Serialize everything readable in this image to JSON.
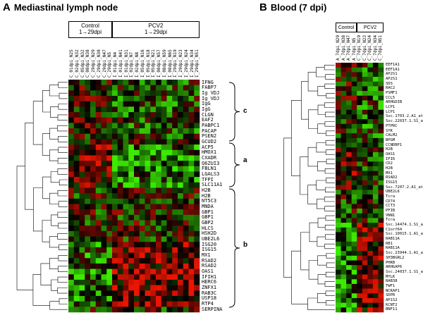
{
  "panelA": {
    "letter": "A",
    "title": "Mediastinal lymph node",
    "groups": [
      {
        "line1": "Control",
        "line2": "1→29dpi"
      },
      {
        "line1": "PCV2",
        "line2": "1→29dpi"
      }
    ],
    "columns": [
      "C_01dpi_N25",
      "C_02dpi_N32",
      "C_05dpi_N32",
      "C_08dpi_N38",
      "C_29dpi_N29",
      "C_29dpi_N30",
      "C_29dpi_N47",
      "C_29dpi_N5",
      "I_01dpi_N4",
      "I_01dpi_N41",
      "I_01dpi_N31",
      "I_02dpi_N7",
      "I_02dpi_N8",
      "I_05dpi_N16",
      "I_05dpi_N18",
      "I_05dpi_N21",
      "I_08dpi_N57",
      "I_08dpi_N59",
      "I_08dpi_N65",
      "I_29dpi_N19",
      "I_29dpi_N23",
      "I_29dpi_N24",
      "I_29dpi_N34",
      "I_29dpi_N51"
    ],
    "genes": [
      "IFNG",
      "FABP7",
      "Ig VDJ",
      "Ig VDJ",
      "IgG",
      "IgG",
      "CLGN",
      "EAF2",
      "PABPC1",
      "PACAP",
      "PSEN2",
      "GCUD2",
      "ACP5",
      "HMOX1",
      "CXADR",
      "Q6ZUI3",
      "FBLN1",
      "LGALS3",
      "TFPI",
      "SLC11A1",
      "H2B",
      "H2B",
      "NT5C3",
      "MNDA",
      "GBP1",
      "GBP1",
      "GBP2",
      "HLCS",
      "HSH2D",
      "UBE2L6",
      "ISG20",
      "ISG15",
      "MX1",
      "RSAD2",
      "RSAD2",
      "OAS1",
      "IFIH1",
      "HERC6",
      "ZNFX1",
      "RAB3C",
      "USP18",
      "RTP4",
      "SERPINA"
    ],
    "clusters": [
      "c",
      "a",
      "b"
    ]
  },
  "panelB": {
    "letter": "B",
    "title": "Blood (7 dpi)",
    "groups": [
      {
        "line1": "Control"
      },
      {
        "line1": "PCV2"
      }
    ],
    "columns": [
      "A_7dpi_N29",
      "A_7dpi_N38",
      "A_7dpi_N47",
      "A_7dpi_N5",
      "C_7dpi_N19",
      "C_7dpi_N23",
      "C_7dpi_N24",
      "C_7dpi_N34",
      "C_7dpi_N51"
    ],
    "genes": [
      "EEF1A1",
      "EEF1A1",
      "AP2S1",
      "AP2S1",
      "SDS",
      "RAC2",
      "PSMF1",
      "CCL5",
      "ARHGDIB",
      "LCP1",
      "LCP1",
      "Ssc.1703.2.A1_at",
      "Ssc.22037.1.S1_at",
      "PTPRC",
      "SYK",
      "CALM2",
      "BPGM",
      "CCNDBP1",
      "H2B",
      "OAS1",
      "IFI6",
      "CD2",
      "H2B",
      "MX1",
      "RSAD2",
      "ISG15",
      "Ssc.7207.2.A1_at",
      "UBE2L6",
      "Tcra",
      "CD74",
      "CCT3",
      "PFIB",
      "VNN1",
      "Tcra",
      "Ssc.14474.1.S1_at",
      "C1orf64",
      "Ssc.10015.1.A1_at",
      "RAB11A",
      "RB1",
      "RAB11A",
      "Ssc.23944.1.A1_at",
      "SH3BGRL2",
      "PHKB",
      "ARHGAP6",
      "Ssc.24037.1.S1_at",
      "MYLK",
      "RAB38",
      "TWF1",
      "NCKAP1",
      "SDPR",
      "AP1S2",
      "KCNT2",
      "BNF11"
    ]
  }
}
